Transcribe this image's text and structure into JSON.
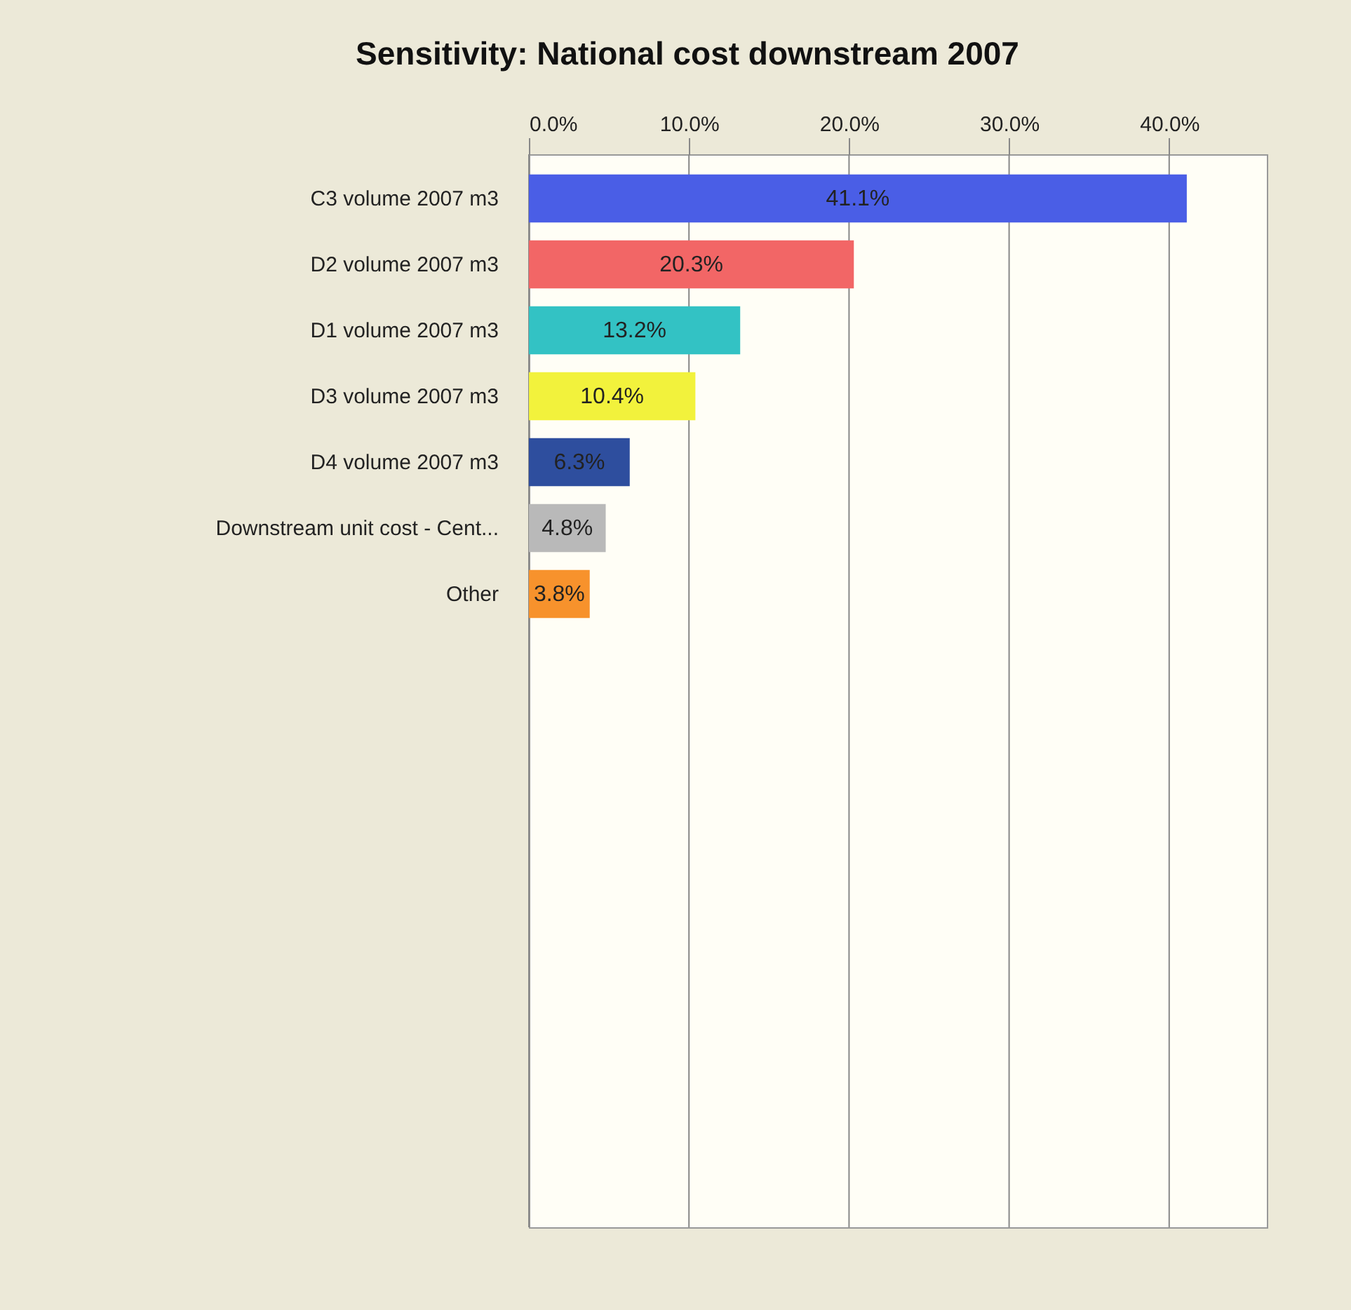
{
  "chart_data": {
    "type": "bar",
    "orientation": "horizontal",
    "title": "Sensitivity: National cost downstream 2007",
    "categories": [
      "C3 volume 2007 m3",
      "D2 volume 2007 m3",
      "D1 volume 2007 m3",
      "D3 volume 2007 m3",
      "D4 volume 2007 m3",
      "Downstream unit cost - Cent...",
      "Other"
    ],
    "values": [
      41.1,
      20.3,
      13.2,
      10.4,
      6.3,
      4.8,
      3.8
    ],
    "colors": [
      "#4a5ee6",
      "#f26666",
      "#33c2c4",
      "#f2f23c",
      "#2e4e9e",
      "#b9b9b9",
      "#f7922c"
    ],
    "value_labels": [
      "41.1%",
      "20.3%",
      "13.2%",
      "10.4%",
      "6.3%",
      "4.8%",
      "3.8%"
    ],
    "xlim": [
      0,
      46.1
    ],
    "xticks": [
      {
        "value": 0,
        "label": "0.0%"
      },
      {
        "value": 10,
        "label": "10.0%"
      },
      {
        "value": 20,
        "label": "20.0%"
      },
      {
        "value": 30,
        "label": "30.0%"
      },
      {
        "value": 40,
        "label": "40.0%"
      }
    ],
    "grid": "x"
  }
}
